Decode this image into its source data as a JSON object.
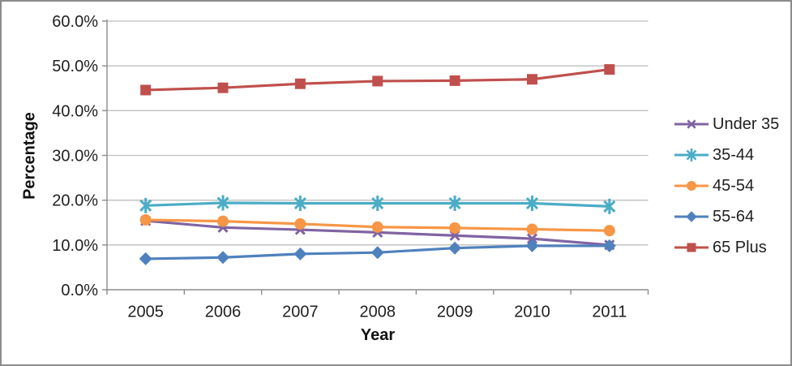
{
  "chart_data": {
    "type": "line",
    "title": "",
    "xlabel": "Year",
    "ylabel": "Percentage",
    "categories": [
      "2005",
      "2006",
      "2007",
      "2008",
      "2009",
      "2010",
      "2011"
    ],
    "y_axis": {
      "min": 0,
      "max": 60,
      "step": 10,
      "tick_labels": [
        "0.0%",
        "10.0%",
        "20.0%",
        "30.0%",
        "40.0%",
        "50.0%",
        "60.0%"
      ]
    },
    "grid": true,
    "legend_position": "right",
    "series": [
      {
        "name": "Under 35",
        "marker": "x",
        "color": "#8064A2",
        "values": [
          15.4,
          13.9,
          13.4,
          12.8,
          12.1,
          11.4,
          10.0
        ]
      },
      {
        "name": "35-44",
        "marker": "asterisk",
        "color": "#4BACC6",
        "values": [
          18.8,
          19.4,
          19.3,
          19.3,
          19.3,
          19.3,
          18.6
        ]
      },
      {
        "name": "45-54",
        "marker": "circle",
        "color": "#F79646",
        "values": [
          15.6,
          15.3,
          14.7,
          14.0,
          13.8,
          13.5,
          13.2
        ]
      },
      {
        "name": "55-64",
        "marker": "diamond",
        "color": "#4F81BD",
        "values": [
          6.9,
          7.2,
          8.0,
          8.3,
          9.3,
          9.8,
          9.8
        ]
      },
      {
        "name": "65 Plus",
        "marker": "square",
        "color": "#C0504D",
        "values": [
          44.6,
          45.1,
          46.0,
          46.6,
          46.7,
          47.0,
          49.2
        ]
      }
    ]
  },
  "colors": {
    "gridline": "#BFBFBF",
    "axis": "#8C8C8C",
    "text": "#1F1F1F",
    "frame_border": "#8C8C8C",
    "background": "#FFFFFF"
  }
}
